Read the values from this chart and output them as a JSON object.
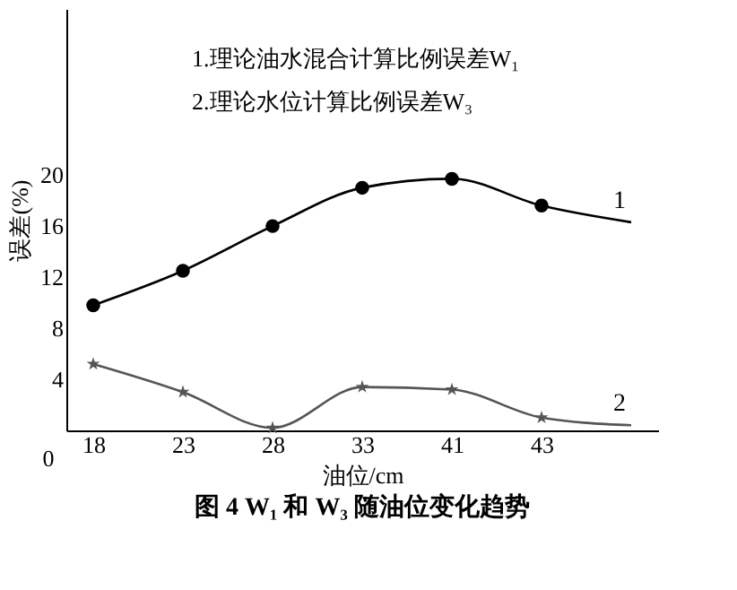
{
  "chart_data": {
    "type": "line",
    "title": "图 4   W₁ 和 W₃ 随油位变化趋势",
    "xlabel": "油位/cm",
    "ylabel": "误差(%)",
    "categories": [
      "18",
      "23",
      "28",
      "33",
      "41",
      "43",
      null
    ],
    "series": [
      {
        "name": "1",
        "color": "#000000",
        "marker": "circle",
        "values": [
          9.8,
          12.5,
          16.0,
          19.0,
          19.7,
          17.6,
          16.3
        ]
      },
      {
        "name": "2",
        "color": "#555555",
        "marker": "star",
        "values": [
          5.2,
          3.0,
          0.2,
          3.4,
          3.2,
          1.0,
          0.4
        ]
      }
    ],
    "ylim": [
      0,
      33
    ],
    "yticks": [
      4,
      8,
      12,
      16,
      20
    ],
    "grid": false,
    "annotations": [
      "1.理论油水混合计算比例误差W₁",
      "2.理论水位计算比例误差W₃",
      "0"
    ]
  }
}
